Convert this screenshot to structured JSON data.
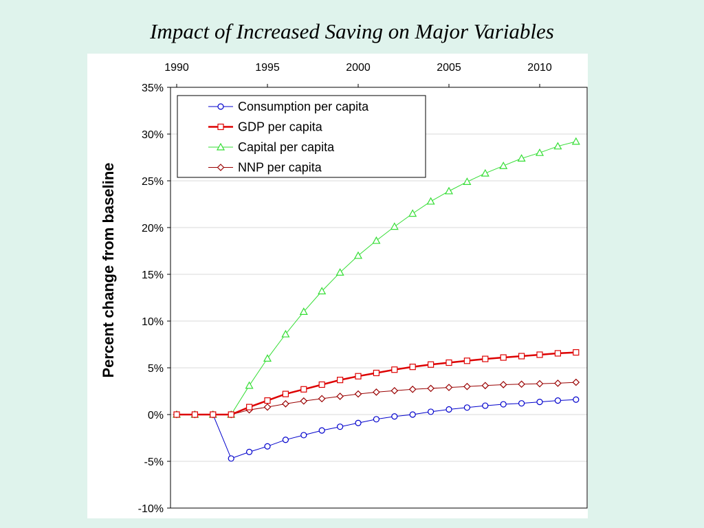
{
  "slide": {
    "title": "Impact of Increased Saving on Major Variables"
  },
  "chart_data": {
    "type": "line",
    "title": "Impact of Increased Saving on Major Variables",
    "xlabel": "",
    "ylabel": "Percent change from baseline",
    "x_axis_position": "top",
    "x_ticks": [
      1990,
      1995,
      2000,
      2005,
      2010
    ],
    "xlim": [
      1990,
      2012
    ],
    "ylim": [
      -10,
      35
    ],
    "y_ticks": [
      -10,
      -5,
      0,
      5,
      10,
      15,
      20,
      25,
      30,
      35
    ],
    "y_tick_labels": [
      "-10%",
      "-5%",
      "0%",
      "5%",
      "10%",
      "15%",
      "20%",
      "25%",
      "30%",
      "35%"
    ],
    "grid": "horizontal",
    "legend_position": "top-left",
    "x": [
      1990,
      1991,
      1992,
      1993,
      1994,
      1995,
      1996,
      1997,
      1998,
      1999,
      2000,
      2001,
      2002,
      2003,
      2004,
      2005,
      2006,
      2007,
      2008,
      2009,
      2010,
      2011,
      2012
    ],
    "series": [
      {
        "name": "Consumption per capita",
        "color": "#0000cc",
        "marker": "circle",
        "line_width": 1,
        "values": [
          0,
          0,
          0,
          -4.7,
          -4.0,
          -3.4,
          -2.7,
          -2.2,
          -1.7,
          -1.3,
          -0.9,
          -0.5,
          -0.2,
          0.0,
          0.3,
          0.55,
          0.75,
          0.95,
          1.1,
          1.2,
          1.35,
          1.5,
          1.6
        ]
      },
      {
        "name": "GDP per capita",
        "color": "#dd0000",
        "marker": "square",
        "line_width": 2.5,
        "values": [
          0,
          0,
          0,
          0,
          0.8,
          1.5,
          2.2,
          2.7,
          3.2,
          3.7,
          4.1,
          4.45,
          4.8,
          5.1,
          5.35,
          5.55,
          5.75,
          5.95,
          6.1,
          6.25,
          6.4,
          6.55,
          6.65
        ]
      },
      {
        "name": "Capital per capita",
        "color": "#33dd33",
        "marker": "triangle",
        "line_width": 1,
        "values": [
          0,
          0,
          0,
          0,
          3.1,
          6.0,
          8.6,
          11.0,
          13.2,
          15.2,
          17.0,
          18.6,
          20.1,
          21.5,
          22.8,
          23.9,
          24.9,
          25.8,
          26.6,
          27.4,
          28.0,
          28.7,
          29.2
        ]
      },
      {
        "name": "NNP per capita",
        "color": "#990000",
        "marker": "diamond",
        "line_width": 1,
        "values": [
          0,
          0,
          0,
          0,
          0.5,
          0.8,
          1.15,
          1.45,
          1.7,
          1.95,
          2.2,
          2.4,
          2.55,
          2.7,
          2.8,
          2.9,
          3.0,
          3.1,
          3.2,
          3.25,
          3.3,
          3.35,
          3.45
        ]
      }
    ]
  }
}
